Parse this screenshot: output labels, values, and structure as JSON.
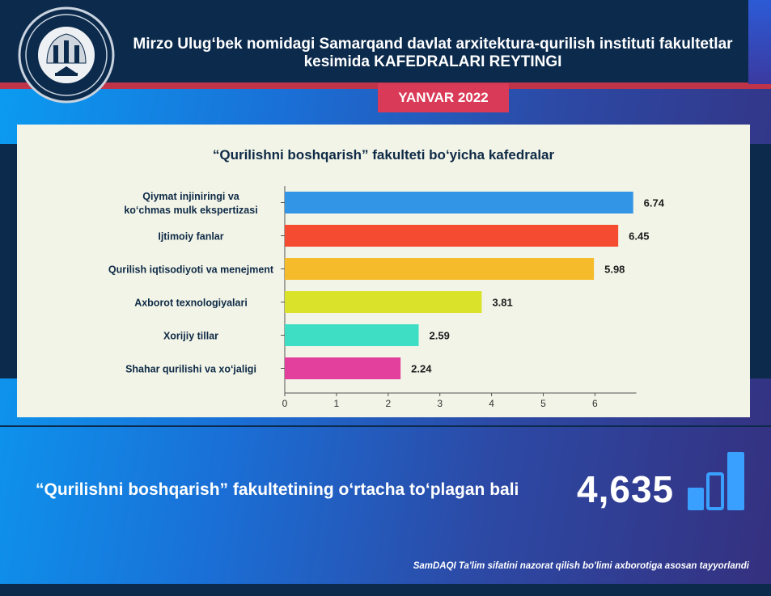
{
  "header": {
    "title_line1": "Mirzo Ulug‘bek nomidagi Samarqand davlat arxitektura-qurilish instituti fakultetlar",
    "title_line2": "kesimida KAFEDRALARI REYTINGI",
    "badge": "YANVAR 2022"
  },
  "colors": {
    "navy": "#0b2a4c",
    "red": "#d93a57",
    "panel": "#f2f4e7"
  },
  "icons": [
    "university-seal-logo",
    "bar-chart-icon"
  ],
  "chart_data": {
    "type": "bar",
    "orientation": "horizontal",
    "title": "“Qurilishni boshqarish” fakulteti bo‘yicha kafedralar",
    "categories": [
      [
        "Qiymat injiniringi va",
        "ko‘chmas mulk ekspertizasi"
      ],
      [
        "Ijtimoiy fanlar"
      ],
      [
        "Qurilish iqtisodiyoti va menejment"
      ],
      [
        "Axborot texnologiyalari"
      ],
      [
        "Xorijiy tillar"
      ],
      [
        "Shahar qurilishi va xo‘jaligi"
      ]
    ],
    "values": [
      6.74,
      6.45,
      5.98,
      3.81,
      2.59,
      2.24
    ],
    "value_labels": [
      "6.74",
      "6.45",
      "5.98",
      "3.81",
      "2.59",
      "2.24"
    ],
    "bar_colors": [
      "#3395e6",
      "#f54b30",
      "#f6bb2b",
      "#dae22a",
      "#3ddec4",
      "#e33f9c"
    ],
    "xlim": [
      0,
      7
    ],
    "xticks": [
      "0",
      "1",
      "2",
      "3",
      "4",
      "5",
      "6"
    ],
    "grid": false
  },
  "summary": {
    "label": "“Qurilishni boshqarish” fakultetining o‘rtacha to‘plagan bali",
    "value": "4,635"
  },
  "footer": {
    "note": "SamDAQI Ta'lim sifatini nazorat qilish bo'limi axborotiga asosan tayyorlandi"
  }
}
